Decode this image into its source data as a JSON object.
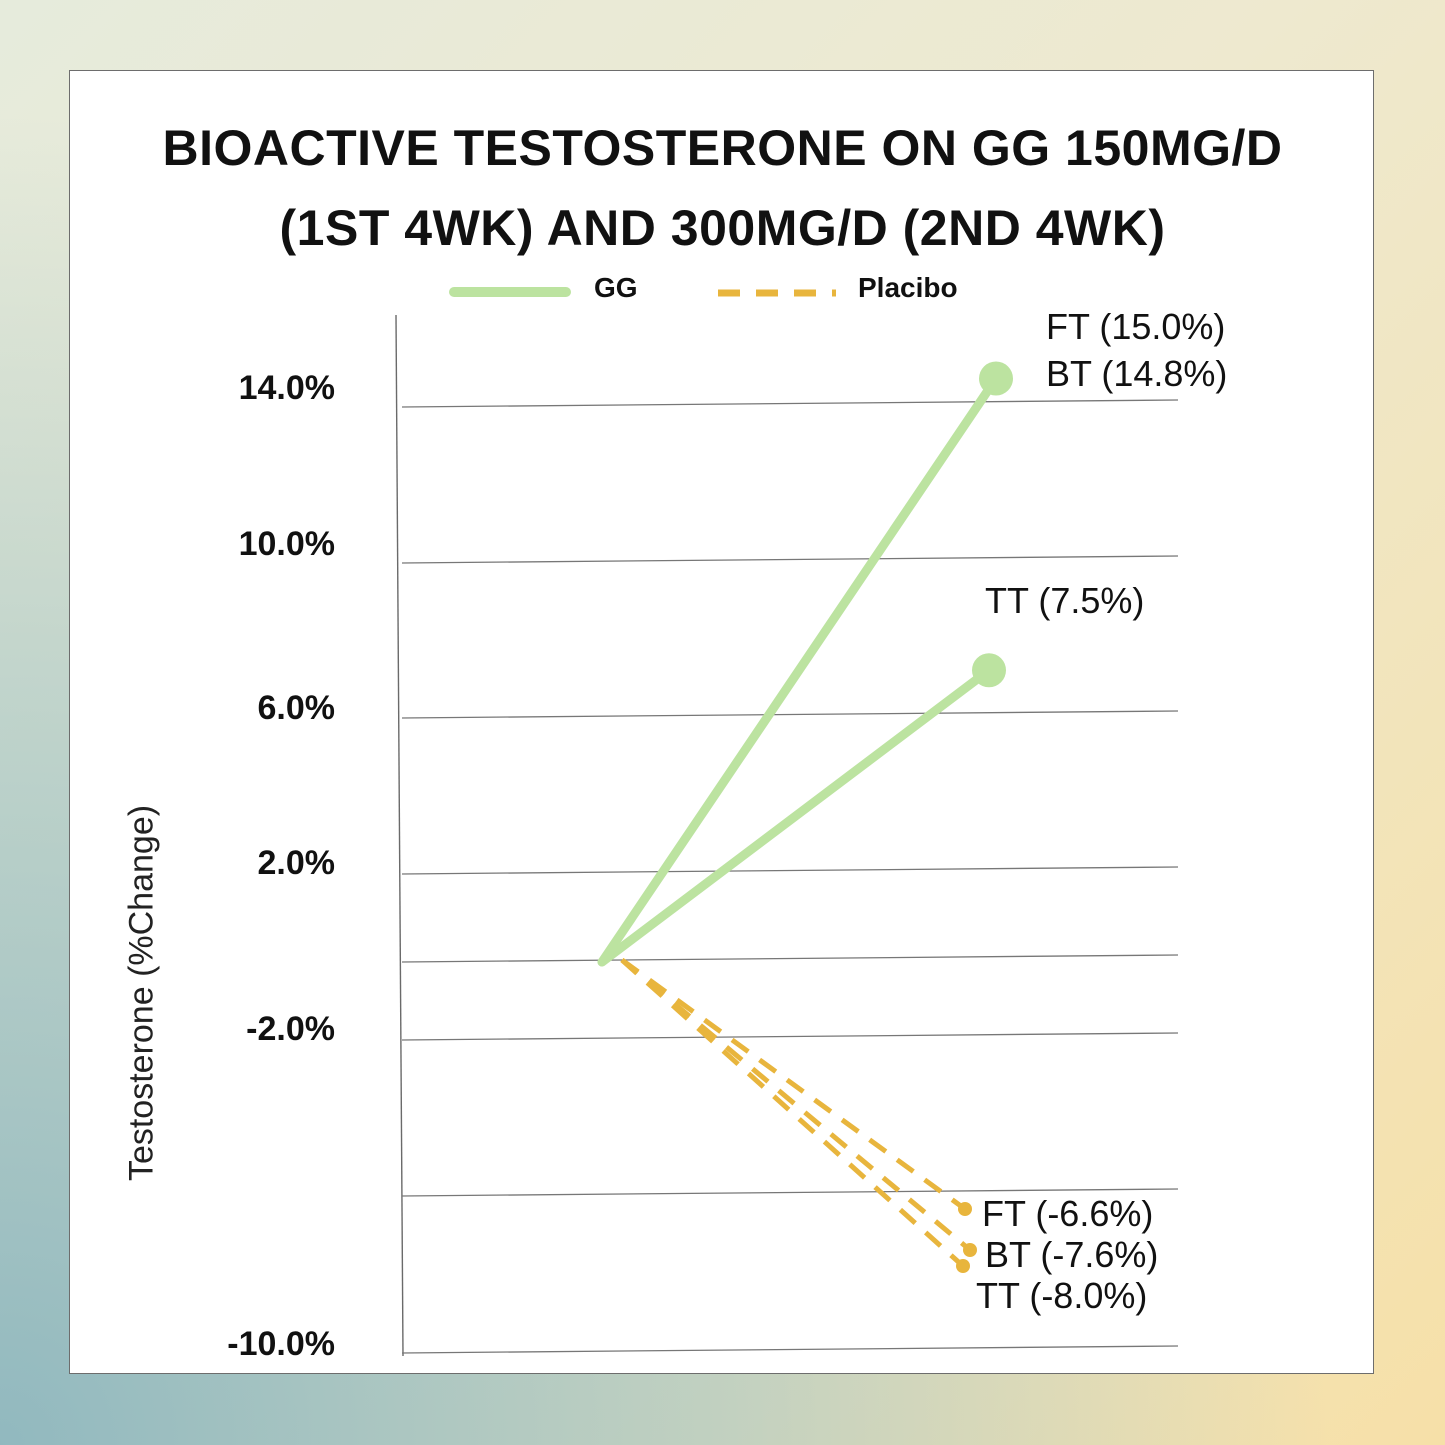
{
  "chart_data": {
    "type": "line",
    "title_lines": [
      "BIOACTIVE TESTOSTERONE ON GG 150MG/D",
      "(1ST 4WK) AND 300MG/D (2ND 4WK)"
    ],
    "ylabel": "Testosterone (%Change)",
    "xlabel": "",
    "yticks": [
      "14.0%",
      "10.0%",
      "6.0%",
      "2.0%",
      "-2.0%",
      "-10.0%"
    ],
    "legend": [
      {
        "name": "GG",
        "color": "#bce3a0",
        "style": "solid"
      },
      {
        "name": "Placibo",
        "color": "#e8b53d",
        "style": "dashed"
      }
    ],
    "series": [
      {
        "group": "GG",
        "label": "FT (15.0%)",
        "start": 0,
        "end": 15.0,
        "color": "#bce3a0"
      },
      {
        "group": "GG",
        "label": "BT (14.8%)",
        "start": 0,
        "end": 14.8,
        "color": "#bce3a0"
      },
      {
        "group": "GG",
        "label": "TT (7.5%)",
        "start": 0,
        "end": 7.5,
        "color": "#bce3a0"
      },
      {
        "group": "Placibo",
        "label": "FT (-6.6%)",
        "start": 0,
        "end": -6.6,
        "color": "#e8b53d"
      },
      {
        "group": "Placibo",
        "label": "BT (-7.6%)",
        "start": 0,
        "end": -7.6,
        "color": "#e8b53d"
      },
      {
        "group": "Placibo",
        "label": "TT (-8.0%)",
        "start": 0,
        "end": -8.0,
        "color": "#e8b53d"
      }
    ],
    "grid": true,
    "legend_position": "top"
  }
}
